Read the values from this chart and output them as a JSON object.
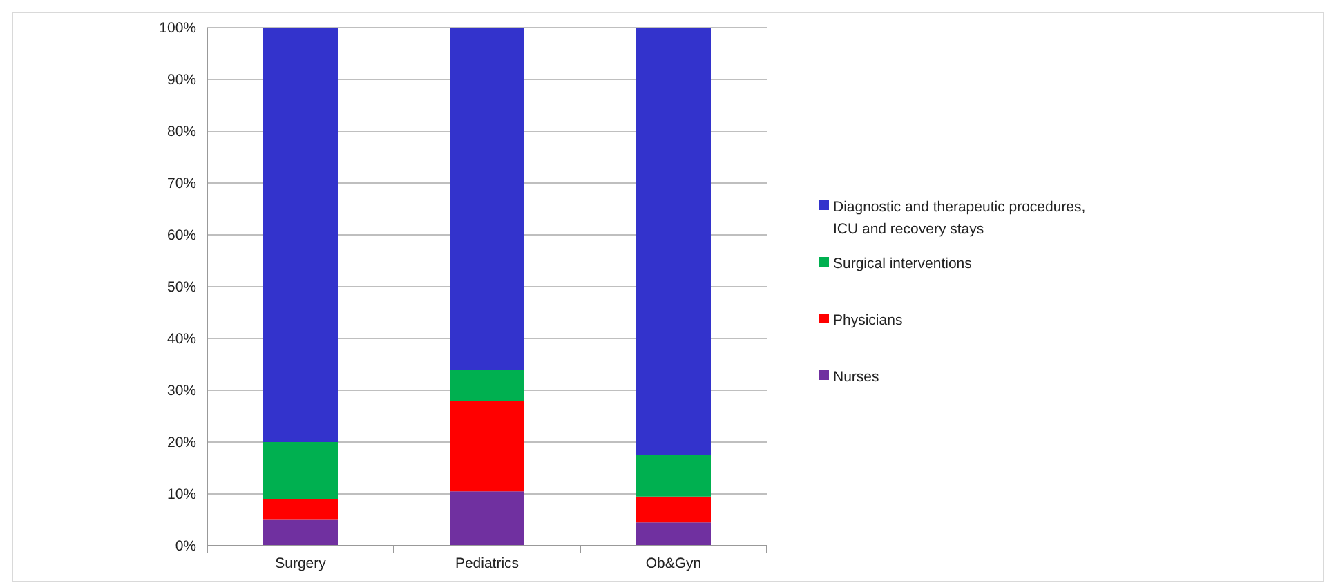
{
  "chart_data": {
    "type": "bar",
    "stacked": true,
    "categories": [
      "Surgery",
      "Pediatrics",
      "Ob&Gyn"
    ],
    "series": [
      {
        "name": "Nurses",
        "color": "#7030a0",
        "values": [
          5,
          10.5,
          4.5
        ]
      },
      {
        "name": "Physicians",
        "color": "#ff0000",
        "values": [
          4,
          17.5,
          5
        ]
      },
      {
        "name": "Surgical interventions",
        "color": "#00b050",
        "values": [
          11,
          6,
          8
        ]
      },
      {
        "name": "Diagnostic and therapeutic procedures, ICU and recovery stays",
        "color": "#3333cc",
        "values": [
          80,
          66,
          82.5
        ]
      }
    ],
    "ylim": [
      0,
      100
    ],
    "yticks": [
      {
        "value": 0,
        "label": "0%"
      },
      {
        "value": 10,
        "label": "10%"
      },
      {
        "value": 20,
        "label": "20%"
      },
      {
        "value": 30,
        "label": "30%"
      },
      {
        "value": 40,
        "label": "40%"
      },
      {
        "value": 50,
        "label": "50%"
      },
      {
        "value": 60,
        "label": "60%"
      },
      {
        "value": 70,
        "label": "70%"
      },
      {
        "value": 80,
        "label": "80%"
      },
      {
        "value": 90,
        "label": "90%"
      },
      {
        "value": 100,
        "label": "100%"
      }
    ],
    "grid": "y",
    "legend": "right"
  }
}
